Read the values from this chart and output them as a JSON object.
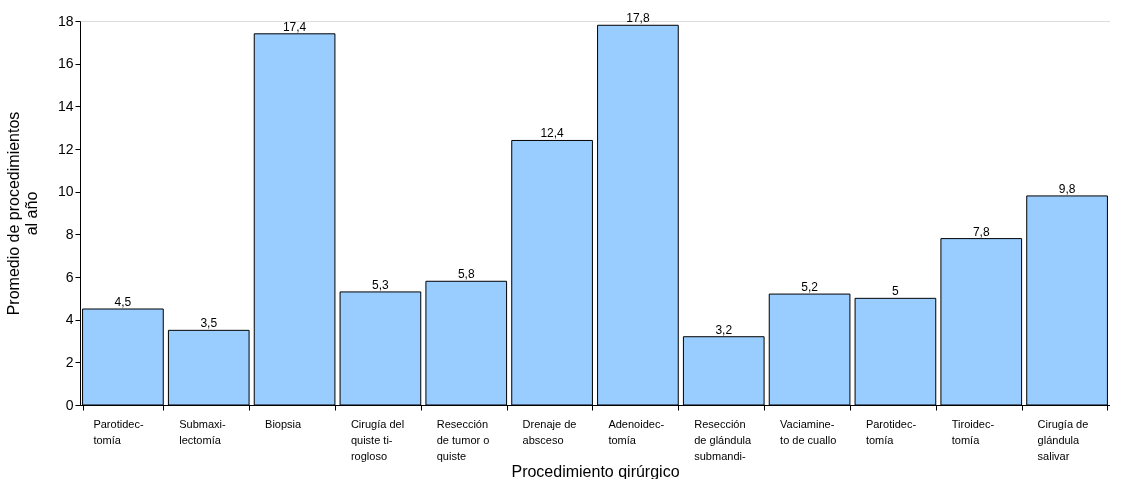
{
  "chart_data": {
    "type": "bar",
    "xlabel": "Procedimiento qirúrgico",
    "ylabel": "Promedio de procedimientos\nal año",
    "categories": [
      "Parotidec-\ntomía",
      "Submaxi-\nlectomía",
      "Biopsia",
      "Cirugía del\nquiste ti-\nrogloso",
      "Resección\nde tumor o\nquiste",
      "Drenaje de\nabsceso",
      "Adenoidec-\ntomía",
      "Resección\nde glándula\nsubmandi-",
      "Vaciamine-\nto de cuallo",
      "Parotidec-\ntomía",
      "Tiroidec-\ntomía",
      "Cirugía de\nglándula\nsalivar"
    ],
    "values": [
      4.5,
      3.5,
      17.4,
      5.3,
      5.8,
      12.4,
      17.8,
      3.2,
      5.2,
      5,
      7.8,
      9.8
    ],
    "value_labels": [
      "4,5",
      "3,5",
      "17,4",
      "5,3",
      "5,8",
      "12,4",
      "17,8",
      "3,2",
      "5,2",
      "5",
      "7,8",
      "9,8"
    ],
    "color": "#99ccff",
    "ylim": [
      0,
      18
    ],
    "yticks": [
      0,
      2,
      4,
      6,
      8,
      10,
      12,
      14,
      16,
      18
    ],
    "grid": false
  }
}
